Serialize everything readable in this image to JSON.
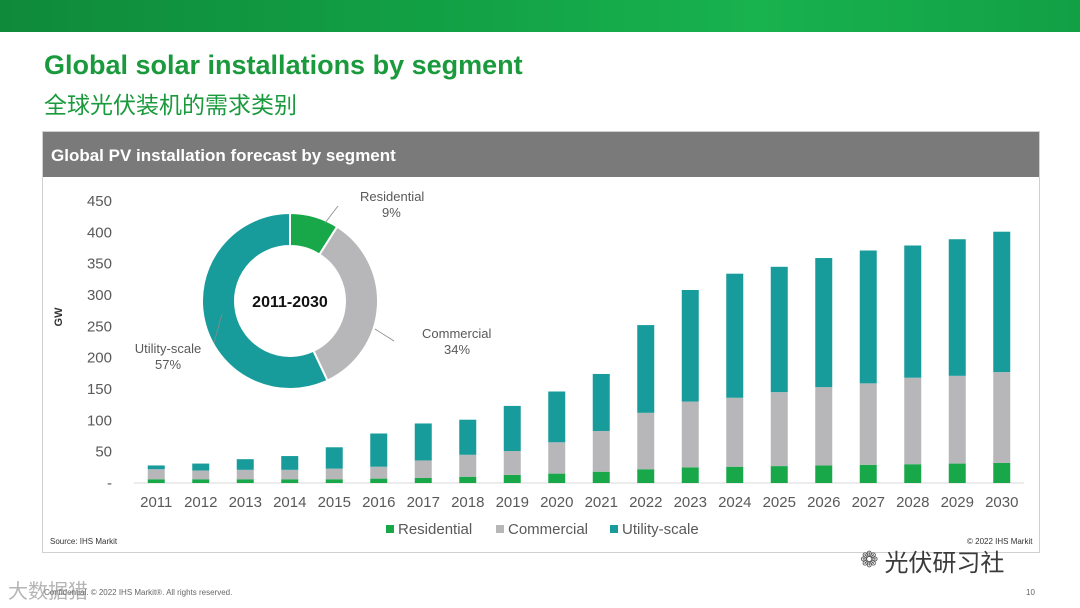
{
  "slide": {
    "title": "Global solar installations by segment",
    "subtitle": "全球光伏装机的需求类别",
    "panel_title": "Global PV installation forecast by segment",
    "source": "Source: IHS Markit",
    "copyright": "© 2022 IHS Markit",
    "footer": "Confidential. © 2022 IHS Markit®. All rights reserved.",
    "page_number": "10",
    "watermark": "光伏研习社",
    "watermark_left": "大数据猎"
  },
  "colors": {
    "residential": "#18a84a",
    "commercial": "#b7b7b9",
    "utility": "#189c9b",
    "axis_text": "#595959"
  },
  "chart_data": [
    {
      "type": "bar",
      "stacked": true,
      "title": "Global PV installation forecast by segment",
      "xlabel": "",
      "ylabel": "GW",
      "ylim": [
        0,
        450
      ],
      "yticks": [
        0,
        50,
        100,
        150,
        200,
        250,
        300,
        350,
        400,
        450
      ],
      "ytick_labels": [
        "-",
        "50",
        "100",
        "150",
        "200",
        "250",
        "300",
        "350",
        "400",
        "450"
      ],
      "grid": false,
      "legend_position": "bottom",
      "categories": [
        "2011",
        "2012",
        "2013",
        "2014",
        "2015",
        "2016",
        "2017",
        "2018",
        "2019",
        "2020",
        "2021",
        "2022",
        "2023",
        "2024",
        "2025",
        "2026",
        "2027",
        "2028",
        "2029",
        "2030"
      ],
      "series": [
        {
          "name": "Residential",
          "values": [
            6,
            6,
            6,
            6,
            6,
            7,
            8,
            10,
            13,
            15,
            18,
            22,
            25,
            26,
            27,
            28,
            29,
            30,
            31,
            32
          ]
        },
        {
          "name": "Commercial",
          "values": [
            16,
            14,
            15,
            15,
            17,
            19,
            28,
            35,
            38,
            50,
            65,
            90,
            105,
            110,
            118,
            125,
            130,
            138,
            140,
            145
          ]
        },
        {
          "name": "Utility-scale",
          "values": [
            6,
            11,
            17,
            22,
            34,
            53,
            59,
            56,
            72,
            81,
            91,
            140,
            178,
            198,
            200,
            206,
            212,
            211,
            218,
            224
          ]
        }
      ]
    },
    {
      "type": "pie",
      "donut": true,
      "title": "2011-2030",
      "labels": [
        "Residential",
        "Commercial",
        "Utility-scale"
      ],
      "values": [
        9,
        34,
        57
      ],
      "value_labels": [
        "9%",
        "34%",
        "57%"
      ]
    }
  ]
}
